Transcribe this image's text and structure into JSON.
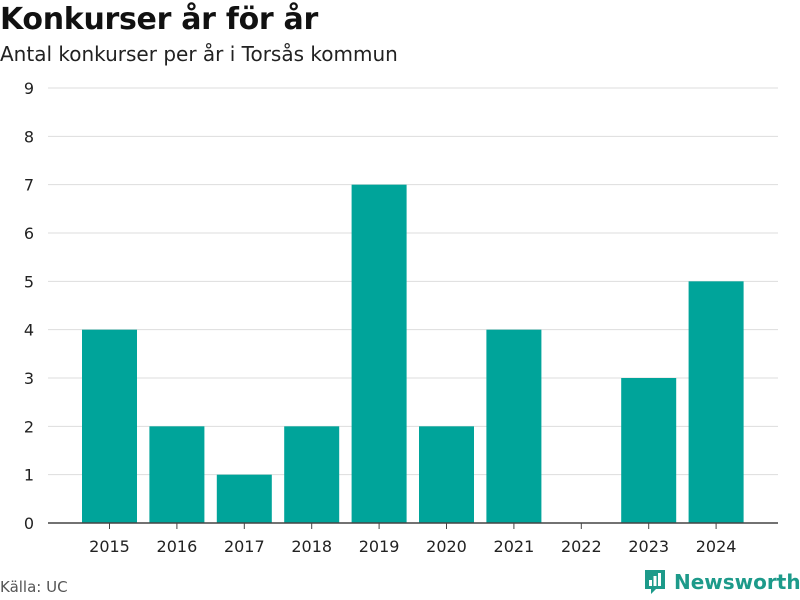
{
  "chart_data": {
    "type": "bar",
    "title": "Konkurser år för år",
    "subtitle": "Antal konkurser per år i Torsås kommun",
    "categories": [
      "2015",
      "2016",
      "2017",
      "2018",
      "2019",
      "2020",
      "2021",
      "2022",
      "2023",
      "2024"
    ],
    "values": [
      4,
      2,
      1,
      2,
      7,
      2,
      4,
      0,
      3,
      5
    ],
    "xlabel": "",
    "ylabel": "",
    "ylim": [
      0,
      9
    ],
    "yticks": [
      0,
      1,
      2,
      3,
      4,
      5,
      6,
      7,
      8,
      9
    ],
    "grid": true,
    "bar_color": "#00a49a"
  },
  "footer": {
    "source": "Källa: UC",
    "brand": "Newsworthy",
    "brand_color": "#1d9a8a",
    "brand_icon": "bar-chart-logo-icon"
  }
}
